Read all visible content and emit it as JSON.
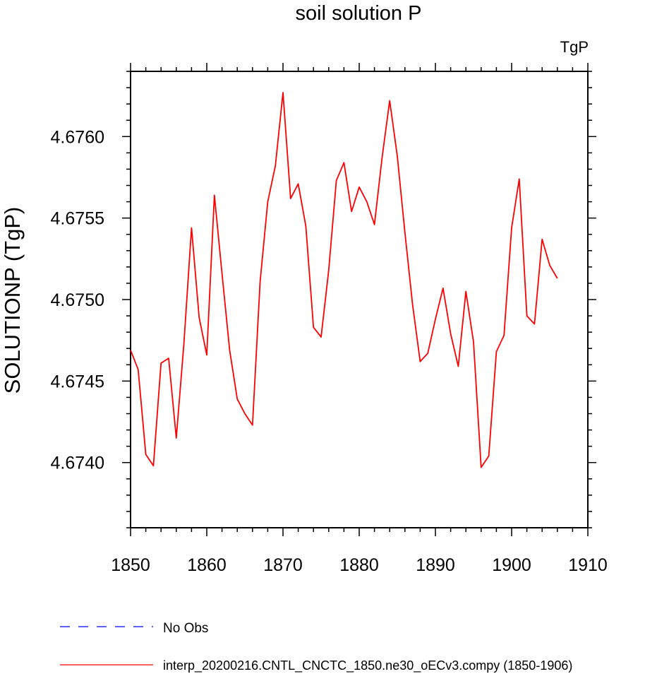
{
  "chart_data": {
    "type": "line",
    "title": "soil solution P",
    "units_label": "TgP",
    "ylabel": "SOLUTIONP  (TgP)",
    "xlabel": "",
    "xlim": [
      1850,
      1910
    ],
    "ylim": [
      4.6736,
      4.6764
    ],
    "x_ticks": [
      1850,
      1860,
      1870,
      1880,
      1890,
      1900,
      1910
    ],
    "x_tick_labels": [
      "1850",
      "1860",
      "1870",
      "1880",
      "1890",
      "1900",
      "1910"
    ],
    "y_ticks": [
      4.674,
      4.6745,
      4.675,
      4.6755,
      4.676
    ],
    "y_tick_labels": [
      "4.6740",
      "4.6745",
      "4.6750",
      "4.6755",
      "4.6760"
    ],
    "grid": false,
    "legend_placement": "bottom",
    "series": [
      {
        "name": "interp_20200216.CNTL_CNCTC_1850.ne30_oECv3.compy (1850-1906)",
        "color": "#ff0000",
        "style": "solid",
        "x": [
          1850,
          1851,
          1852,
          1853,
          1854,
          1855,
          1856,
          1857,
          1858,
          1859,
          1860,
          1861,
          1862,
          1863,
          1864,
          1865,
          1866,
          1867,
          1868,
          1869,
          1870,
          1871,
          1872,
          1873,
          1874,
          1875,
          1876,
          1877,
          1878,
          1879,
          1880,
          1881,
          1882,
          1883,
          1884,
          1885,
          1886,
          1887,
          1888,
          1889,
          1890,
          1891,
          1892,
          1893,
          1894,
          1895,
          1896,
          1897,
          1898,
          1899,
          1900,
          1901,
          1902,
          1903,
          1904,
          1905,
          1906
        ],
        "values": [
          4.67469,
          4.67457,
          4.67405,
          4.67398,
          4.67461,
          4.67464,
          4.67415,
          4.67473,
          4.67544,
          4.67489,
          4.67466,
          4.67564,
          4.67516,
          4.67469,
          4.67439,
          4.6743,
          4.67423,
          4.67511,
          4.6756,
          4.67582,
          4.67627,
          4.67562,
          4.67571,
          4.67545,
          4.67483,
          4.67477,
          4.67518,
          4.67573,
          4.67584,
          4.67554,
          4.67569,
          4.6756,
          4.67546,
          4.67587,
          4.67622,
          4.67588,
          4.67541,
          4.67497,
          4.67462,
          4.67467,
          4.67488,
          4.67507,
          4.67479,
          4.67459,
          4.67505,
          4.67474,
          4.67397,
          4.67404,
          4.67468,
          4.67478,
          4.67544,
          4.67574,
          4.6749,
          4.67485,
          4.67537,
          4.67521,
          4.67513
        ]
      },
      {
        "name": "No Obs",
        "color": "#0000ff",
        "style": "dashed",
        "x": [],
        "values": []
      }
    ]
  }
}
